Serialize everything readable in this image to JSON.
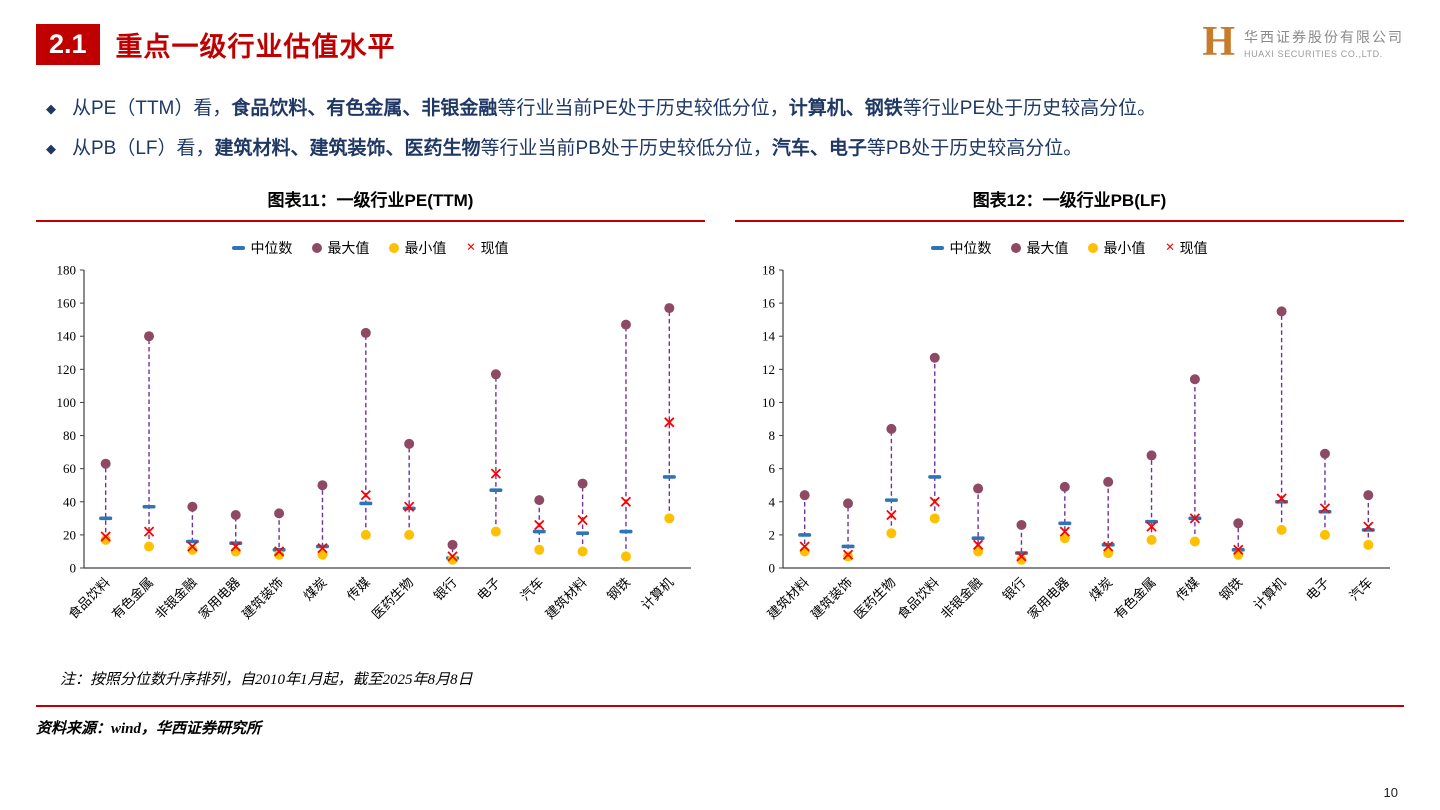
{
  "header": {
    "section_number": "2.1",
    "title": "重点一级行业估值水平",
    "logo_letter": "H",
    "company_cn": "华西证券股份有限公司",
    "company_en": "HUAXI SECURITIES CO.,LTD."
  },
  "bullets": [
    {
      "runs": [
        {
          "text": "从PE（TTM）看，",
          "bold": false
        },
        {
          "text": "食品饮料、有色金属、非银金融",
          "bold": true
        },
        {
          "text": "等行业当前PE处于历史较低分位，",
          "bold": false
        },
        {
          "text": "计算机、钢铁",
          "bold": true
        },
        {
          "text": "等行业PE处于历史较高分位。",
          "bold": false
        }
      ]
    },
    {
      "runs": [
        {
          "text": "从PB（LF）看，",
          "bold": false
        },
        {
          "text": "建筑材料、建筑装饰、医药生物",
          "bold": true
        },
        {
          "text": "等行业当前PB处于历史较低分位，",
          "bold": false
        },
        {
          "text": "汽车、电子",
          "bold": true
        },
        {
          "text": "等PB处于历史较高分位。",
          "bold": false
        }
      ]
    }
  ],
  "colors": {
    "accent_red": "#C00000",
    "median_blue": "#2E75B6",
    "max_plum": "#8E4A64",
    "min_gold": "#FFC000",
    "current_red": "#FF0000",
    "stem_purple": "#7030A0"
  },
  "chart_data": [
    {
      "type": "scatter",
      "title": "图表11：一级行业PE(TTM)",
      "legend": [
        "中位数",
        "最大值",
        "最小值",
        "现值"
      ],
      "ylim": [
        0,
        180
      ],
      "ytick_step": 20,
      "grid": false,
      "legend_position": "top",
      "categories": [
        "食品饮料",
        "有色金属",
        "非银金融",
        "家用电器",
        "建筑装饰",
        "煤炭",
        "传媒",
        "医药生物",
        "银行",
        "电子",
        "汽车",
        "建筑材料",
        "钢铁",
        "计算机"
      ],
      "series": [
        {
          "name": "中位数",
          "values": [
            30,
            37,
            16,
            15,
            11,
            13,
            39,
            36,
            6,
            47,
            22,
            21,
            22,
            55
          ]
        },
        {
          "name": "最大值",
          "values": [
            63,
            140,
            37,
            32,
            33,
            50,
            142,
            75,
            14,
            117,
            41,
            51,
            147,
            157
          ]
        },
        {
          "name": "最小值",
          "values": [
            17,
            13,
            11,
            10,
            8,
            8,
            20,
            20,
            5,
            22,
            11,
            10,
            7,
            30
          ]
        },
        {
          "name": "现值",
          "values": [
            19,
            22,
            13,
            13,
            10,
            12,
            44,
            37,
            7,
            57,
            26,
            29,
            40,
            88
          ]
        }
      ]
    },
    {
      "type": "scatter",
      "title": "图表12：一级行业PB(LF)",
      "legend": [
        "中位数",
        "最大值",
        "最小值",
        "现值"
      ],
      "ylim": [
        0,
        18
      ],
      "ytick_step": 2,
      "grid": false,
      "legend_position": "top",
      "categories": [
        "建筑材料",
        "建筑装饰",
        "医药生物",
        "食品饮料",
        "非银金融",
        "银行",
        "家用电器",
        "煤炭",
        "有色金属",
        "传媒",
        "钢铁",
        "计算机",
        "电子",
        "汽车"
      ],
      "series": [
        {
          "name": "中位数",
          "values": [
            2.0,
            1.3,
            4.1,
            5.5,
            1.8,
            0.9,
            2.7,
            1.4,
            2.8,
            3.0,
            1.1,
            4.0,
            3.4,
            2.3
          ]
        },
        {
          "name": "最大值",
          "values": [
            4.4,
            3.9,
            8.4,
            12.7,
            4.8,
            2.6,
            4.9,
            5.2,
            6.8,
            11.4,
            2.7,
            15.5,
            6.9,
            4.4
          ]
        },
        {
          "name": "最小值",
          "values": [
            1.0,
            0.7,
            2.1,
            3.0,
            1.0,
            0.5,
            1.8,
            0.9,
            1.7,
            1.6,
            0.8,
            2.3,
            2.0,
            1.4
          ]
        },
        {
          "name": "现值",
          "values": [
            1.3,
            0.8,
            3.2,
            4.0,
            1.4,
            0.7,
            2.2,
            1.3,
            2.5,
            3.0,
            1.1,
            4.2,
            3.6,
            2.5
          ]
        }
      ]
    }
  ],
  "footer": {
    "note": "注：按照分位数升序排列，自2010年1月起，截至2025年8月8日",
    "source": "资料来源：wind，华西证券研究所",
    "page": "10"
  }
}
